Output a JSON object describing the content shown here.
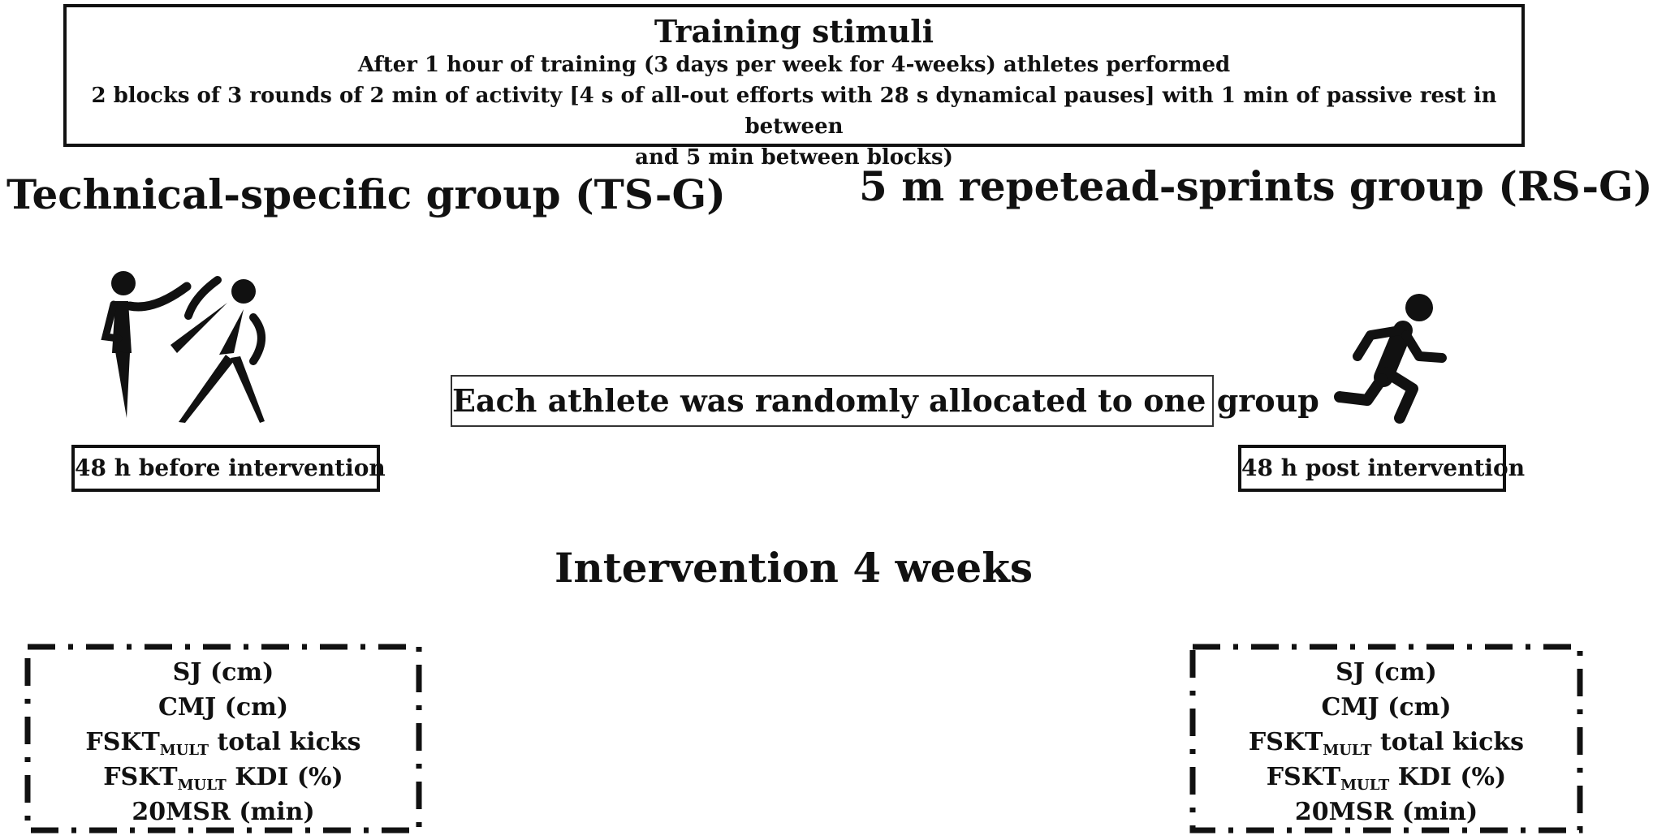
{
  "training_stimuli": {
    "title": "Training stimuli",
    "line1": "After 1 hour of training (3 days per week for 4-weeks) athletes performed",
    "line2": "2 blocks of 3 rounds of 2 min of activity [4 s of all-out efforts with 28 s dynamical pauses] with 1 min of passive rest in between",
    "line3": "and 5 min between blocks)"
  },
  "groups": {
    "ts": {
      "title": "Technical-specific group (TS-G)",
      "icon": "taekwondo-fighters-icon"
    },
    "rs": {
      "title": "5 m repetead-sprints group (RS-G)",
      "icon": "runner-icon"
    }
  },
  "allocation_text": "Each athlete was randomly allocated to one group",
  "timepoints": {
    "before": "48 h before intervention",
    "post": "48 h post intervention"
  },
  "intervention_title": "Intervention 4 weeks",
  "measures": [
    {
      "main": "SJ (cm)",
      "sub": "",
      "rest": ""
    },
    {
      "main": "CMJ (cm)",
      "sub": "",
      "rest": ""
    },
    {
      "main": "FSKT",
      "sub": "MULT",
      "rest": " total kicks"
    },
    {
      "main": "FSKT",
      "sub": "MULT",
      "rest": " KDI (%)"
    },
    {
      "main": "20MSR (min)",
      "sub": "",
      "rest": ""
    }
  ],
  "colors": {
    "ink": "#111111",
    "background": "#ffffff"
  }
}
